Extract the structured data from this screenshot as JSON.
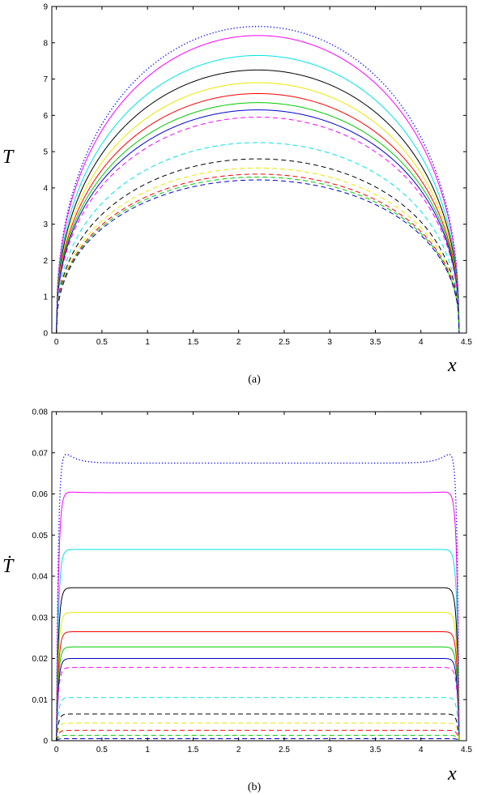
{
  "chart_data": [
    {
      "type": "line",
      "panel_label": "(a)",
      "xlabel": "x",
      "ylabel": "T",
      "xlim": [
        -0.05,
        4.5
      ],
      "ylim": [
        0,
        9
      ],
      "xticks": [
        "0",
        "0.5",
        "1",
        "1.5",
        "2",
        "2.5",
        "3",
        "3.5",
        "4",
        "4.5"
      ],
      "yticks": [
        "0",
        "1",
        "2",
        "3",
        "4",
        "5",
        "6",
        "7",
        "8",
        "9"
      ],
      "grid": false,
      "legend": "none",
      "x_end": 4.42,
      "curve_shape": "symmetric profile zero at both ends, maximum at centre",
      "series": [
        {
          "color": "#0000ff",
          "style": "dotted",
          "peak": 8.45
        },
        {
          "color": "#ff00ff",
          "style": "solid",
          "peak": 8.2
        },
        {
          "color": "#00e5e5",
          "style": "solid",
          "peak": 7.65
        },
        {
          "color": "#000000",
          "style": "solid",
          "peak": 7.25
        },
        {
          "color": "#e8e800",
          "style": "solid",
          "peak": 6.9
        },
        {
          "color": "#ff0000",
          "style": "solid",
          "peak": 6.6
        },
        {
          "color": "#00cc00",
          "style": "solid",
          "peak": 6.35
        },
        {
          "color": "#0000cc",
          "style": "solid",
          "peak": 6.15
        },
        {
          "color": "#ff00ff",
          "style": "dashed",
          "peak": 5.95
        },
        {
          "color": "#00e5e5",
          "style": "dashed",
          "peak": 5.25
        },
        {
          "color": "#000000",
          "style": "dashed",
          "peak": 4.8
        },
        {
          "color": "#e8e800",
          "style": "dashed",
          "peak": 4.55
        },
        {
          "color": "#ff0000",
          "style": "dashed",
          "peak": 4.38
        },
        {
          "color": "#00cc00",
          "style": "dashed",
          "peak": 4.3
        },
        {
          "color": "#0000cc",
          "style": "dashed",
          "peak": 4.22
        }
      ]
    },
    {
      "type": "line",
      "panel_label": "(b)",
      "xlabel": "x",
      "ylabel": "Ṫ",
      "xlim": [
        -0.05,
        4.5
      ],
      "ylim": [
        0,
        0.08
      ],
      "xticks": [
        "0",
        "0.5",
        "1",
        "1.5",
        "2",
        "2.5",
        "3",
        "3.5",
        "4",
        "4.5"
      ],
      "yticks": [
        "0",
        "0.01",
        "0.02",
        "0.03",
        "0.04",
        "0.05",
        "0.06",
        "0.07",
        "0.08"
      ],
      "grid": false,
      "legend": "none",
      "x_end": 4.42,
      "curve_shape": "rises steeply near both ends to a flat plateau",
      "series": [
        {
          "color": "#0000ff",
          "style": "dotted",
          "plateau": 0.0675,
          "edge_peak": 0.074
        },
        {
          "color": "#ff00ff",
          "style": "solid",
          "plateau": 0.0603,
          "edge_peak": 0.061
        },
        {
          "color": "#00e5e5",
          "style": "solid",
          "plateau": 0.0465
        },
        {
          "color": "#000000",
          "style": "solid",
          "plateau": 0.0372
        },
        {
          "color": "#e8e800",
          "style": "solid",
          "plateau": 0.0312
        },
        {
          "color": "#ff0000",
          "style": "solid",
          "plateau": 0.0265
        },
        {
          "color": "#00cc00",
          "style": "solid",
          "plateau": 0.0228
        },
        {
          "color": "#0000cc",
          "style": "solid",
          "plateau": 0.02
        },
        {
          "color": "#ff00ff",
          "style": "dashed",
          "plateau": 0.0178
        },
        {
          "color": "#00e5e5",
          "style": "dashed",
          "plateau": 0.0105
        },
        {
          "color": "#000000",
          "style": "dashed",
          "plateau": 0.0065
        },
        {
          "color": "#e8e800",
          "style": "dashed",
          "plateau": 0.0043
        },
        {
          "color": "#ff0000",
          "style": "dashed",
          "plateau": 0.0025
        },
        {
          "color": "#00cc00",
          "style": "dashed",
          "plateau": 0.0013
        },
        {
          "color": "#0000cc",
          "style": "dashed",
          "plateau": 0.0005
        }
      ]
    }
  ]
}
